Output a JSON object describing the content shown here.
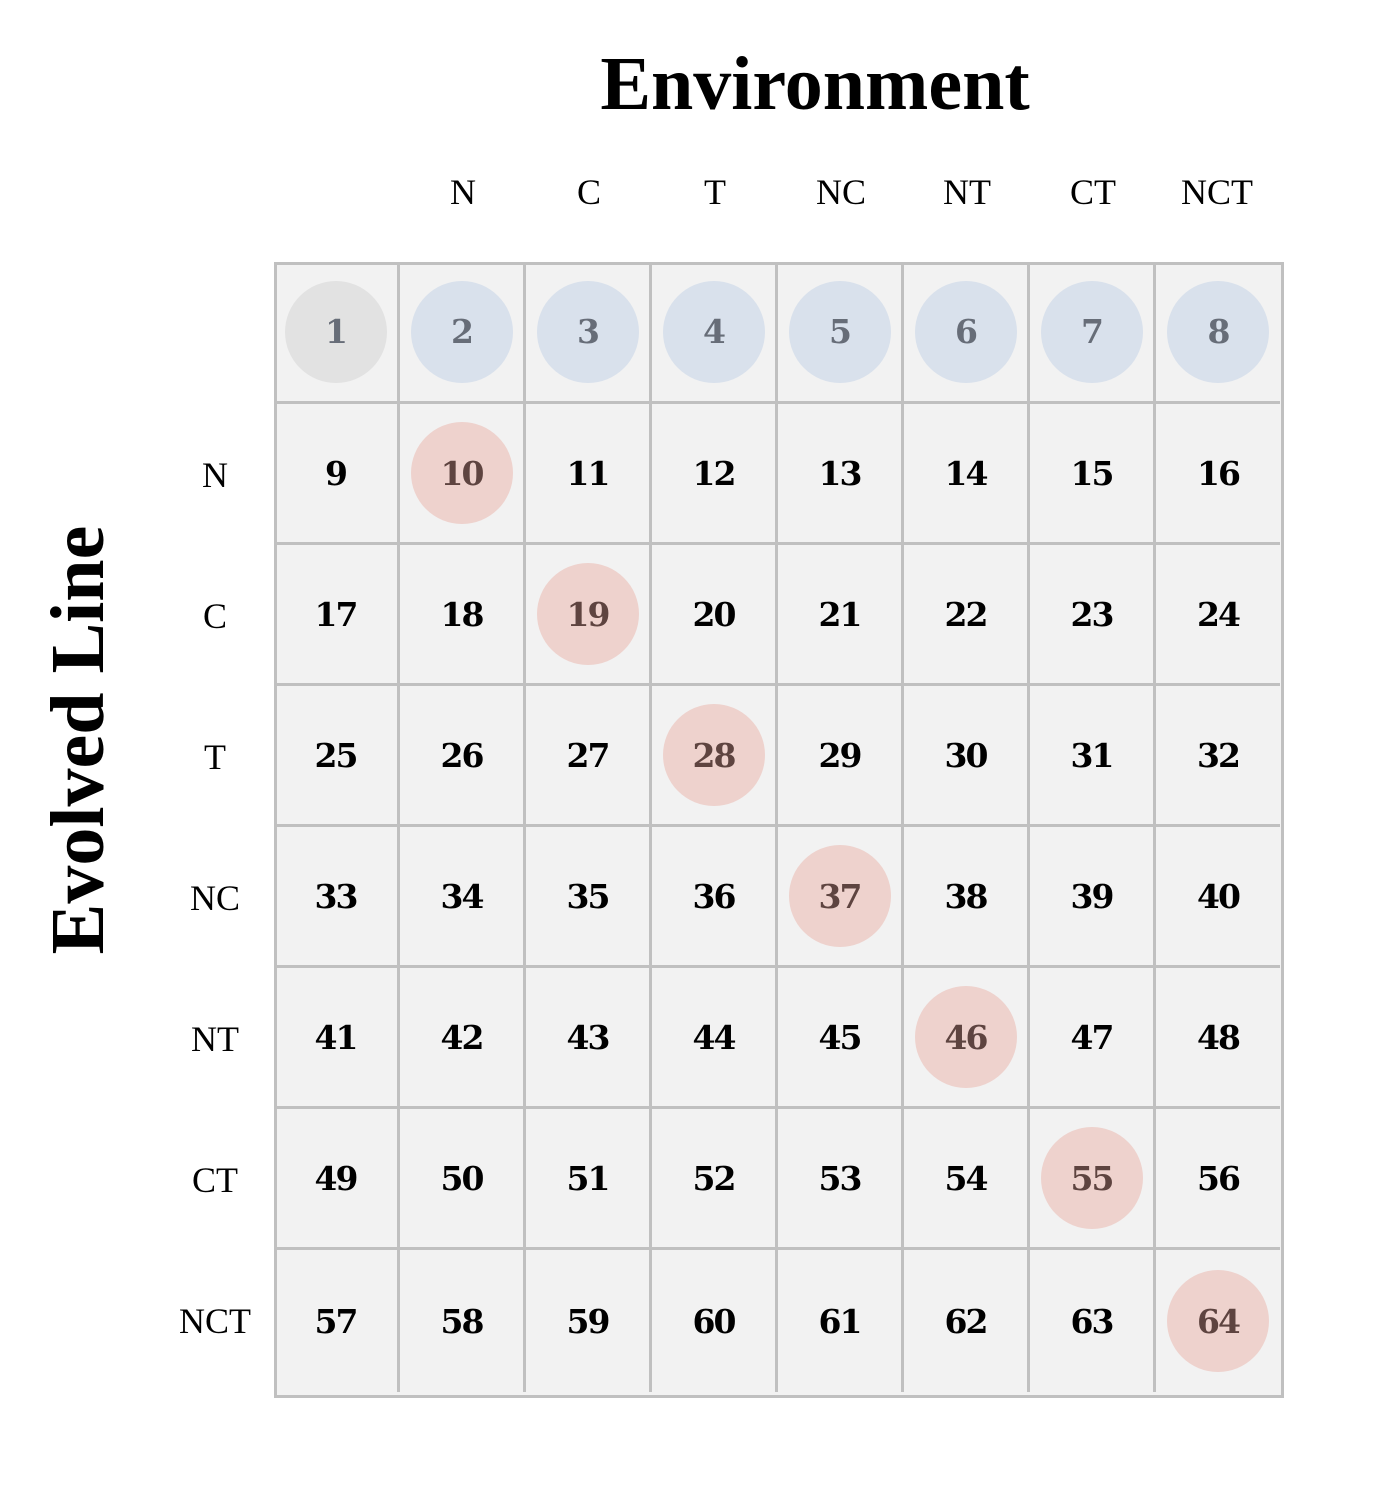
{
  "title": "Environment",
  "ylabel": "Evolved Line",
  "columns": [
    "N",
    "C",
    "T",
    "NC",
    "NT",
    "CT",
    "NCT"
  ],
  "rows": [
    "N",
    "C",
    "T",
    "NC",
    "NT",
    "CT",
    "NCT"
  ],
  "colors": {
    "grid_border": "#c0c0c0",
    "cell_background": "#f2f2f2",
    "gray_circle": "#e2e2e2",
    "blue_circle": "#d9e1ec",
    "red_circle": "#eed2cd",
    "muted_text": "#676d78",
    "red_text": "#5e4440",
    "normal_text": "#000000"
  },
  "cells": [
    {
      "label": "1",
      "highlight": "gray"
    },
    {
      "label": "2",
      "highlight": "blue"
    },
    {
      "label": "3",
      "highlight": "blue"
    },
    {
      "label": "4",
      "highlight": "blue"
    },
    {
      "label": "5",
      "highlight": "blue"
    },
    {
      "label": "6",
      "highlight": "blue"
    },
    {
      "label": "7",
      "highlight": "blue"
    },
    {
      "label": "8",
      "highlight": "blue"
    },
    {
      "label": "9",
      "highlight": "none"
    },
    {
      "label": "10",
      "highlight": "red"
    },
    {
      "label": "11",
      "highlight": "none"
    },
    {
      "label": "12",
      "highlight": "none"
    },
    {
      "label": "13",
      "highlight": "none"
    },
    {
      "label": "14",
      "highlight": "none"
    },
    {
      "label": "15",
      "highlight": "none"
    },
    {
      "label": "16",
      "highlight": "none"
    },
    {
      "label": "17",
      "highlight": "none"
    },
    {
      "label": "18",
      "highlight": "none"
    },
    {
      "label": "19",
      "highlight": "red"
    },
    {
      "label": "20",
      "highlight": "none"
    },
    {
      "label": "21",
      "highlight": "none"
    },
    {
      "label": "22",
      "highlight": "none"
    },
    {
      "label": "23",
      "highlight": "none"
    },
    {
      "label": "24",
      "highlight": "none"
    },
    {
      "label": "25",
      "highlight": "none"
    },
    {
      "label": "26",
      "highlight": "none"
    },
    {
      "label": "27",
      "highlight": "none"
    },
    {
      "label": "28",
      "highlight": "red"
    },
    {
      "label": "29",
      "highlight": "none"
    },
    {
      "label": "30",
      "highlight": "none"
    },
    {
      "label": "31",
      "highlight": "none"
    },
    {
      "label": "32",
      "highlight": "none"
    },
    {
      "label": "33",
      "highlight": "none"
    },
    {
      "label": "34",
      "highlight": "none"
    },
    {
      "label": "35",
      "highlight": "none"
    },
    {
      "label": "36",
      "highlight": "none"
    },
    {
      "label": "37",
      "highlight": "red"
    },
    {
      "label": "38",
      "highlight": "none"
    },
    {
      "label": "39",
      "highlight": "none"
    },
    {
      "label": "40",
      "highlight": "none"
    },
    {
      "label": "41",
      "highlight": "none"
    },
    {
      "label": "42",
      "highlight": "none"
    },
    {
      "label": "43",
      "highlight": "none"
    },
    {
      "label": "44",
      "highlight": "none"
    },
    {
      "label": "45",
      "highlight": "none"
    },
    {
      "label": "46",
      "highlight": "red"
    },
    {
      "label": "47",
      "highlight": "none"
    },
    {
      "label": "48",
      "highlight": "none"
    },
    {
      "label": "49",
      "highlight": "none"
    },
    {
      "label": "50",
      "highlight": "none"
    },
    {
      "label": "51",
      "highlight": "none"
    },
    {
      "label": "52",
      "highlight": "none"
    },
    {
      "label": "53",
      "highlight": "none"
    },
    {
      "label": "54",
      "highlight": "none"
    },
    {
      "label": "55",
      "highlight": "red"
    },
    {
      "label": "56",
      "highlight": "none"
    },
    {
      "label": "57",
      "highlight": "none"
    },
    {
      "label": "58",
      "highlight": "none"
    },
    {
      "label": "59",
      "highlight": "none"
    },
    {
      "label": "60",
      "highlight": "none"
    },
    {
      "label": "61",
      "highlight": "none"
    },
    {
      "label": "62",
      "highlight": "none"
    },
    {
      "label": "63",
      "highlight": "none"
    },
    {
      "label": "64",
      "highlight": "red"
    }
  ]
}
